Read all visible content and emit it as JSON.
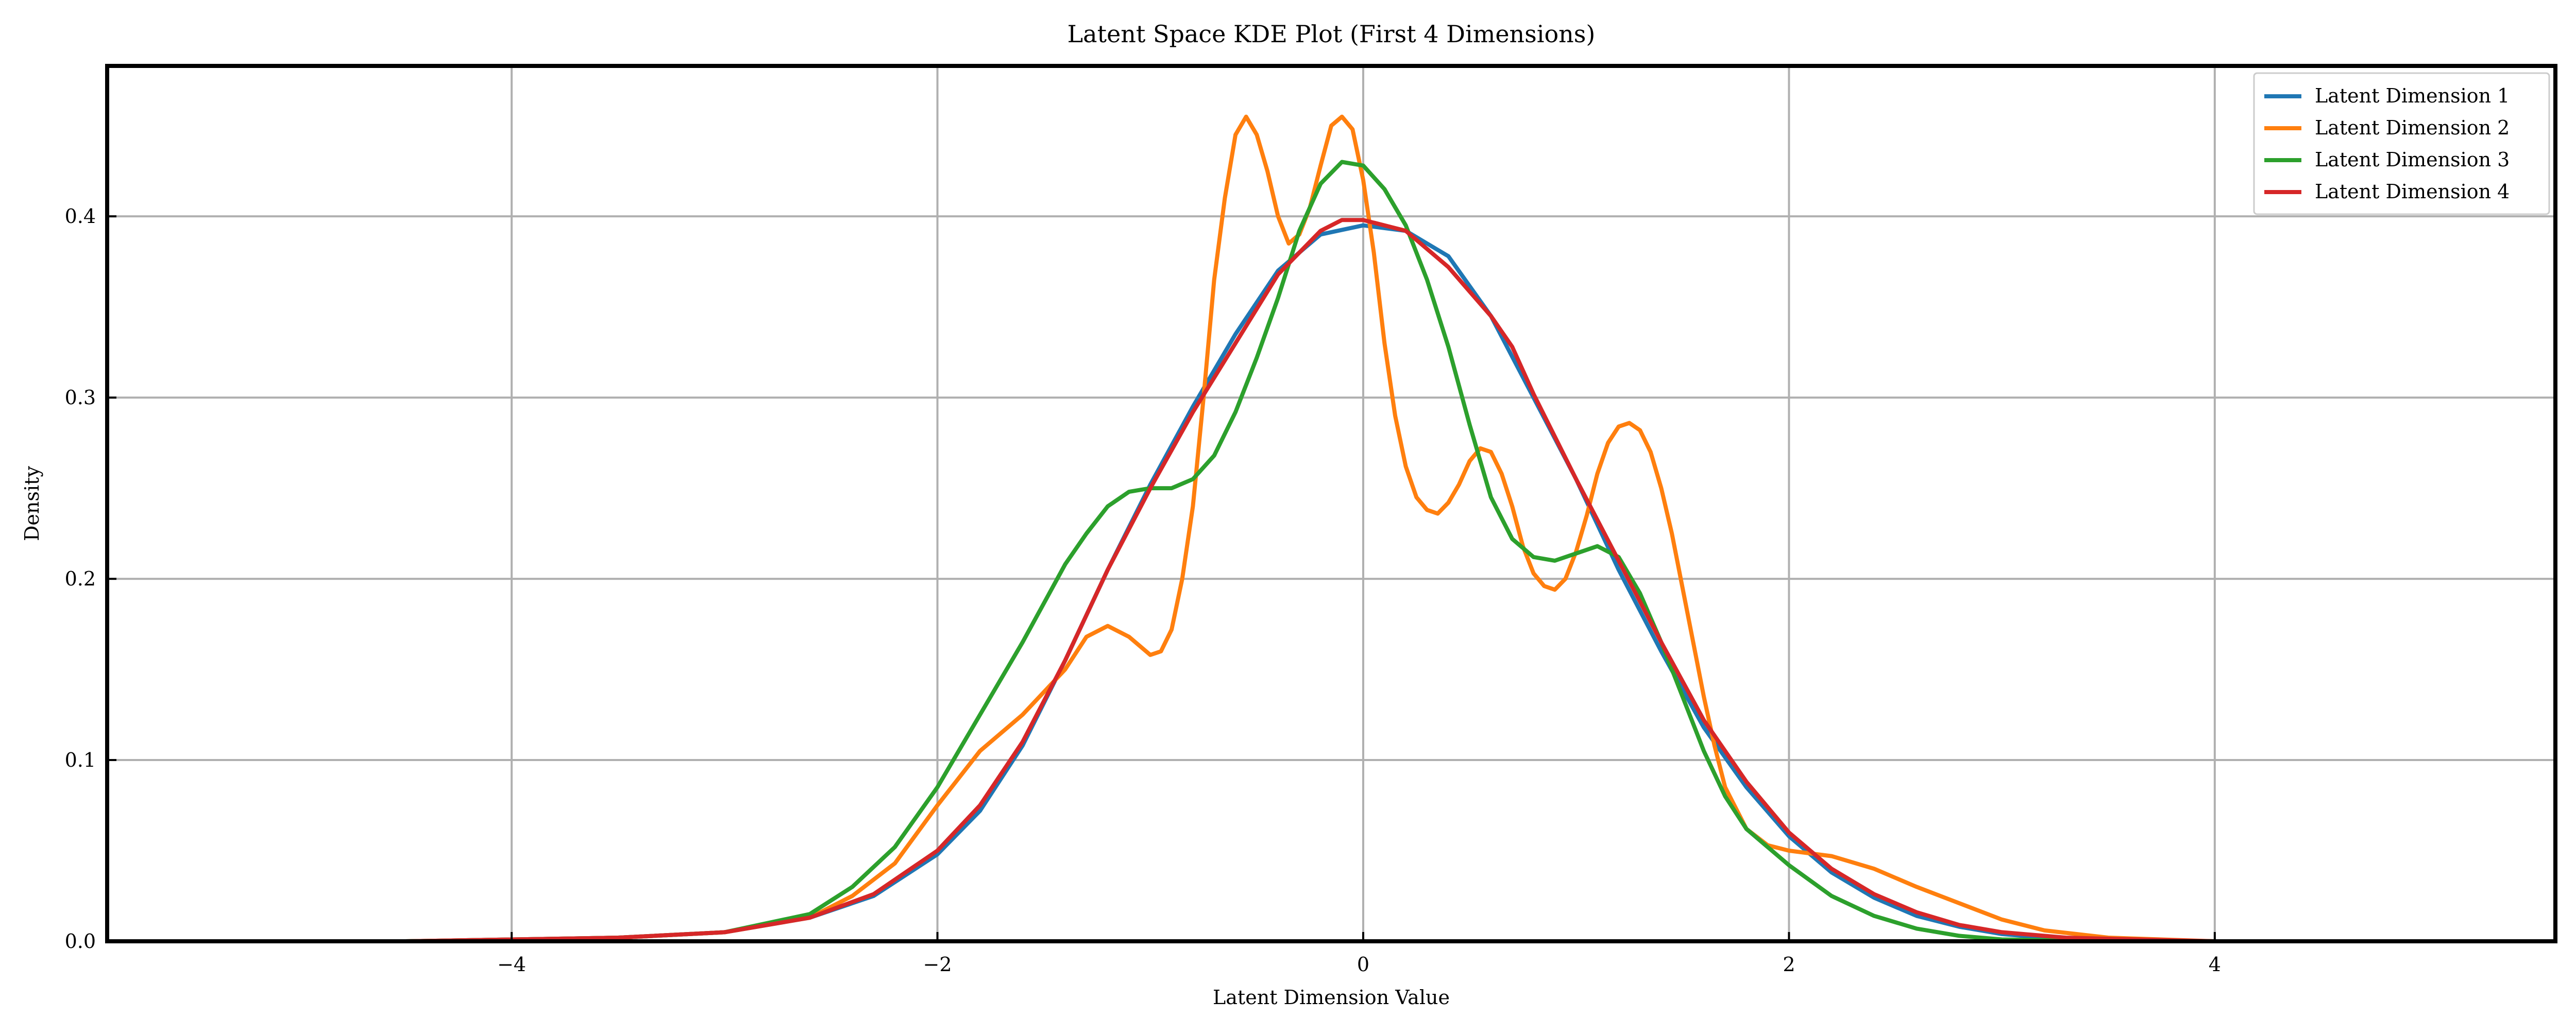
{
  "chart_data": {
    "type": "line",
    "title": "Latent Space KDE Plot (First 4 Dimensions)",
    "xlabel": "Latent Dimension Value",
    "ylabel": "Density",
    "xlim": [
      -5.9,
      5.6
    ],
    "ylim": [
      0.0,
      0.483
    ],
    "x_ticks": [
      -4,
      -2,
      0,
      2,
      4
    ],
    "x_tick_labels": [
      "−4",
      "−2",
      "0",
      "2",
      "4"
    ],
    "y_ticks": [
      0.0,
      0.1,
      0.2,
      0.3,
      0.4
    ],
    "y_tick_labels": [
      "0.0",
      "0.1",
      "0.2",
      "0.3",
      "0.4"
    ],
    "grid": true,
    "legend_position": "top-right",
    "series": [
      {
        "name": "Latent Dimension 1",
        "color": "#1f77b4",
        "points": [
          [
            -5.9,
            0.0
          ],
          [
            -4.5,
            0.0
          ],
          [
            -4.0,
            0.001
          ],
          [
            -3.5,
            0.002
          ],
          [
            -3.0,
            0.005
          ],
          [
            -2.6,
            0.013
          ],
          [
            -2.3,
            0.025
          ],
          [
            -2.0,
            0.048
          ],
          [
            -1.8,
            0.072
          ],
          [
            -1.6,
            0.108
          ],
          [
            -1.4,
            0.155
          ],
          [
            -1.2,
            0.205
          ],
          [
            -1.0,
            0.252
          ],
          [
            -0.8,
            0.295
          ],
          [
            -0.6,
            0.335
          ],
          [
            -0.4,
            0.37
          ],
          [
            -0.2,
            0.39
          ],
          [
            0.0,
            0.395
          ],
          [
            0.2,
            0.392
          ],
          [
            0.4,
            0.378
          ],
          [
            0.6,
            0.345
          ],
          [
            0.8,
            0.3
          ],
          [
            1.0,
            0.255
          ],
          [
            1.2,
            0.205
          ],
          [
            1.4,
            0.16
          ],
          [
            1.6,
            0.118
          ],
          [
            1.8,
            0.085
          ],
          [
            2.0,
            0.058
          ],
          [
            2.2,
            0.038
          ],
          [
            2.4,
            0.024
          ],
          [
            2.6,
            0.014
          ],
          [
            2.8,
            0.008
          ],
          [
            3.0,
            0.004
          ],
          [
            3.3,
            0.001
          ],
          [
            4.0,
            0.0
          ],
          [
            5.6,
            0.0
          ]
        ]
      },
      {
        "name": "Latent Dimension 2",
        "color": "#ff7f0e",
        "points": [
          [
            -5.9,
            0.0
          ],
          [
            -4.5,
            0.0
          ],
          [
            -4.0,
            0.001
          ],
          [
            -3.5,
            0.002
          ],
          [
            -3.0,
            0.005
          ],
          [
            -2.6,
            0.013
          ],
          [
            -2.4,
            0.025
          ],
          [
            -2.2,
            0.043
          ],
          [
            -2.0,
            0.075
          ],
          [
            -1.8,
            0.105
          ],
          [
            -1.6,
            0.125
          ],
          [
            -1.4,
            0.15
          ],
          [
            -1.3,
            0.168
          ],
          [
            -1.2,
            0.174
          ],
          [
            -1.1,
            0.168
          ],
          [
            -1.0,
            0.158
          ],
          [
            -0.95,
            0.16
          ],
          [
            -0.9,
            0.172
          ],
          [
            -0.85,
            0.2
          ],
          [
            -0.8,
            0.24
          ],
          [
            -0.75,
            0.3
          ],
          [
            -0.7,
            0.365
          ],
          [
            -0.65,
            0.41
          ],
          [
            -0.6,
            0.445
          ],
          [
            -0.55,
            0.455
          ],
          [
            -0.5,
            0.445
          ],
          [
            -0.45,
            0.425
          ],
          [
            -0.4,
            0.4
          ],
          [
            -0.35,
            0.385
          ],
          [
            -0.3,
            0.39
          ],
          [
            -0.25,
            0.405
          ],
          [
            -0.2,
            0.428
          ],
          [
            -0.15,
            0.45
          ],
          [
            -0.1,
            0.455
          ],
          [
            -0.05,
            0.448
          ],
          [
            0.0,
            0.42
          ],
          [
            0.05,
            0.38
          ],
          [
            0.1,
            0.33
          ],
          [
            0.15,
            0.29
          ],
          [
            0.2,
            0.262
          ],
          [
            0.25,
            0.245
          ],
          [
            0.3,
            0.238
          ],
          [
            0.35,
            0.236
          ],
          [
            0.4,
            0.242
          ],
          [
            0.45,
            0.252
          ],
          [
            0.5,
            0.265
          ],
          [
            0.55,
            0.272
          ],
          [
            0.6,
            0.27
          ],
          [
            0.65,
            0.258
          ],
          [
            0.7,
            0.24
          ],
          [
            0.75,
            0.218
          ],
          [
            0.8,
            0.203
          ],
          [
            0.85,
            0.196
          ],
          [
            0.9,
            0.194
          ],
          [
            0.95,
            0.2
          ],
          [
            1.0,
            0.215
          ],
          [
            1.05,
            0.235
          ],
          [
            1.1,
            0.258
          ],
          [
            1.15,
            0.275
          ],
          [
            1.2,
            0.284
          ],
          [
            1.25,
            0.286
          ],
          [
            1.3,
            0.282
          ],
          [
            1.35,
            0.27
          ],
          [
            1.4,
            0.25
          ],
          [
            1.45,
            0.225
          ],
          [
            1.5,
            0.195
          ],
          [
            1.55,
            0.165
          ],
          [
            1.6,
            0.135
          ],
          [
            1.65,
            0.108
          ],
          [
            1.7,
            0.085
          ],
          [
            1.8,
            0.062
          ],
          [
            1.9,
            0.053
          ],
          [
            2.0,
            0.05
          ],
          [
            2.2,
            0.047
          ],
          [
            2.4,
            0.04
          ],
          [
            2.6,
            0.03
          ],
          [
            2.8,
            0.021
          ],
          [
            3.0,
            0.012
          ],
          [
            3.2,
            0.006
          ],
          [
            3.5,
            0.002
          ],
          [
            4.0,
            0.0
          ],
          [
            5.6,
            0.0
          ]
        ]
      },
      {
        "name": "Latent Dimension 3",
        "color": "#2ca02c",
        "points": [
          [
            -5.9,
            0.0
          ],
          [
            -4.5,
            0.0
          ],
          [
            -4.0,
            0.001
          ],
          [
            -3.5,
            0.002
          ],
          [
            -3.0,
            0.005
          ],
          [
            -2.6,
            0.015
          ],
          [
            -2.4,
            0.03
          ],
          [
            -2.2,
            0.052
          ],
          [
            -2.0,
            0.085
          ],
          [
            -1.8,
            0.125
          ],
          [
            -1.6,
            0.165
          ],
          [
            -1.4,
            0.208
          ],
          [
            -1.3,
            0.225
          ],
          [
            -1.2,
            0.24
          ],
          [
            -1.1,
            0.248
          ],
          [
            -1.0,
            0.25
          ],
          [
            -0.9,
            0.25
          ],
          [
            -0.8,
            0.255
          ],
          [
            -0.7,
            0.268
          ],
          [
            -0.6,
            0.292
          ],
          [
            -0.5,
            0.322
          ],
          [
            -0.4,
            0.355
          ],
          [
            -0.3,
            0.392
          ],
          [
            -0.2,
            0.418
          ],
          [
            -0.1,
            0.43
          ],
          [
            0.0,
            0.428
          ],
          [
            0.1,
            0.415
          ],
          [
            0.2,
            0.395
          ],
          [
            0.3,
            0.365
          ],
          [
            0.4,
            0.328
          ],
          [
            0.5,
            0.285
          ],
          [
            0.6,
            0.245
          ],
          [
            0.7,
            0.222
          ],
          [
            0.8,
            0.212
          ],
          [
            0.9,
            0.21
          ],
          [
            1.0,
            0.214
          ],
          [
            1.1,
            0.218
          ],
          [
            1.2,
            0.212
          ],
          [
            1.3,
            0.192
          ],
          [
            1.4,
            0.165
          ],
          [
            1.5,
            0.135
          ],
          [
            1.6,
            0.105
          ],
          [
            1.7,
            0.08
          ],
          [
            1.8,
            0.062
          ],
          [
            2.0,
            0.042
          ],
          [
            2.2,
            0.025
          ],
          [
            2.4,
            0.014
          ],
          [
            2.6,
            0.007
          ],
          [
            2.8,
            0.003
          ],
          [
            3.0,
            0.001
          ],
          [
            3.5,
            0.0
          ],
          [
            5.6,
            0.0
          ]
        ]
      },
      {
        "name": "Latent Dimension 4",
        "color": "#d62728",
        "points": [
          [
            -5.9,
            0.0
          ],
          [
            -4.5,
            0.0
          ],
          [
            -4.0,
            0.001
          ],
          [
            -3.5,
            0.002
          ],
          [
            -3.0,
            0.005
          ],
          [
            -2.6,
            0.013
          ],
          [
            -2.3,
            0.026
          ],
          [
            -2.0,
            0.05
          ],
          [
            -1.8,
            0.075
          ],
          [
            -1.6,
            0.11
          ],
          [
            -1.4,
            0.155
          ],
          [
            -1.2,
            0.205
          ],
          [
            -1.0,
            0.25
          ],
          [
            -0.8,
            0.292
          ],
          [
            -0.6,
            0.33
          ],
          [
            -0.4,
            0.368
          ],
          [
            -0.2,
            0.392
          ],
          [
            -0.1,
            0.398
          ],
          [
            0.0,
            0.398
          ],
          [
            0.2,
            0.392
          ],
          [
            0.4,
            0.372
          ],
          [
            0.6,
            0.345
          ],
          [
            0.7,
            0.328
          ],
          [
            0.8,
            0.302
          ],
          [
            1.0,
            0.255
          ],
          [
            1.2,
            0.21
          ],
          [
            1.4,
            0.165
          ],
          [
            1.6,
            0.122
          ],
          [
            1.8,
            0.088
          ],
          [
            2.0,
            0.06
          ],
          [
            2.2,
            0.04
          ],
          [
            2.4,
            0.026
          ],
          [
            2.6,
            0.016
          ],
          [
            2.8,
            0.009
          ],
          [
            3.0,
            0.005
          ],
          [
            3.3,
            0.002
          ],
          [
            4.0,
            0.0
          ],
          [
            5.6,
            0.0
          ]
        ]
      }
    ]
  }
}
